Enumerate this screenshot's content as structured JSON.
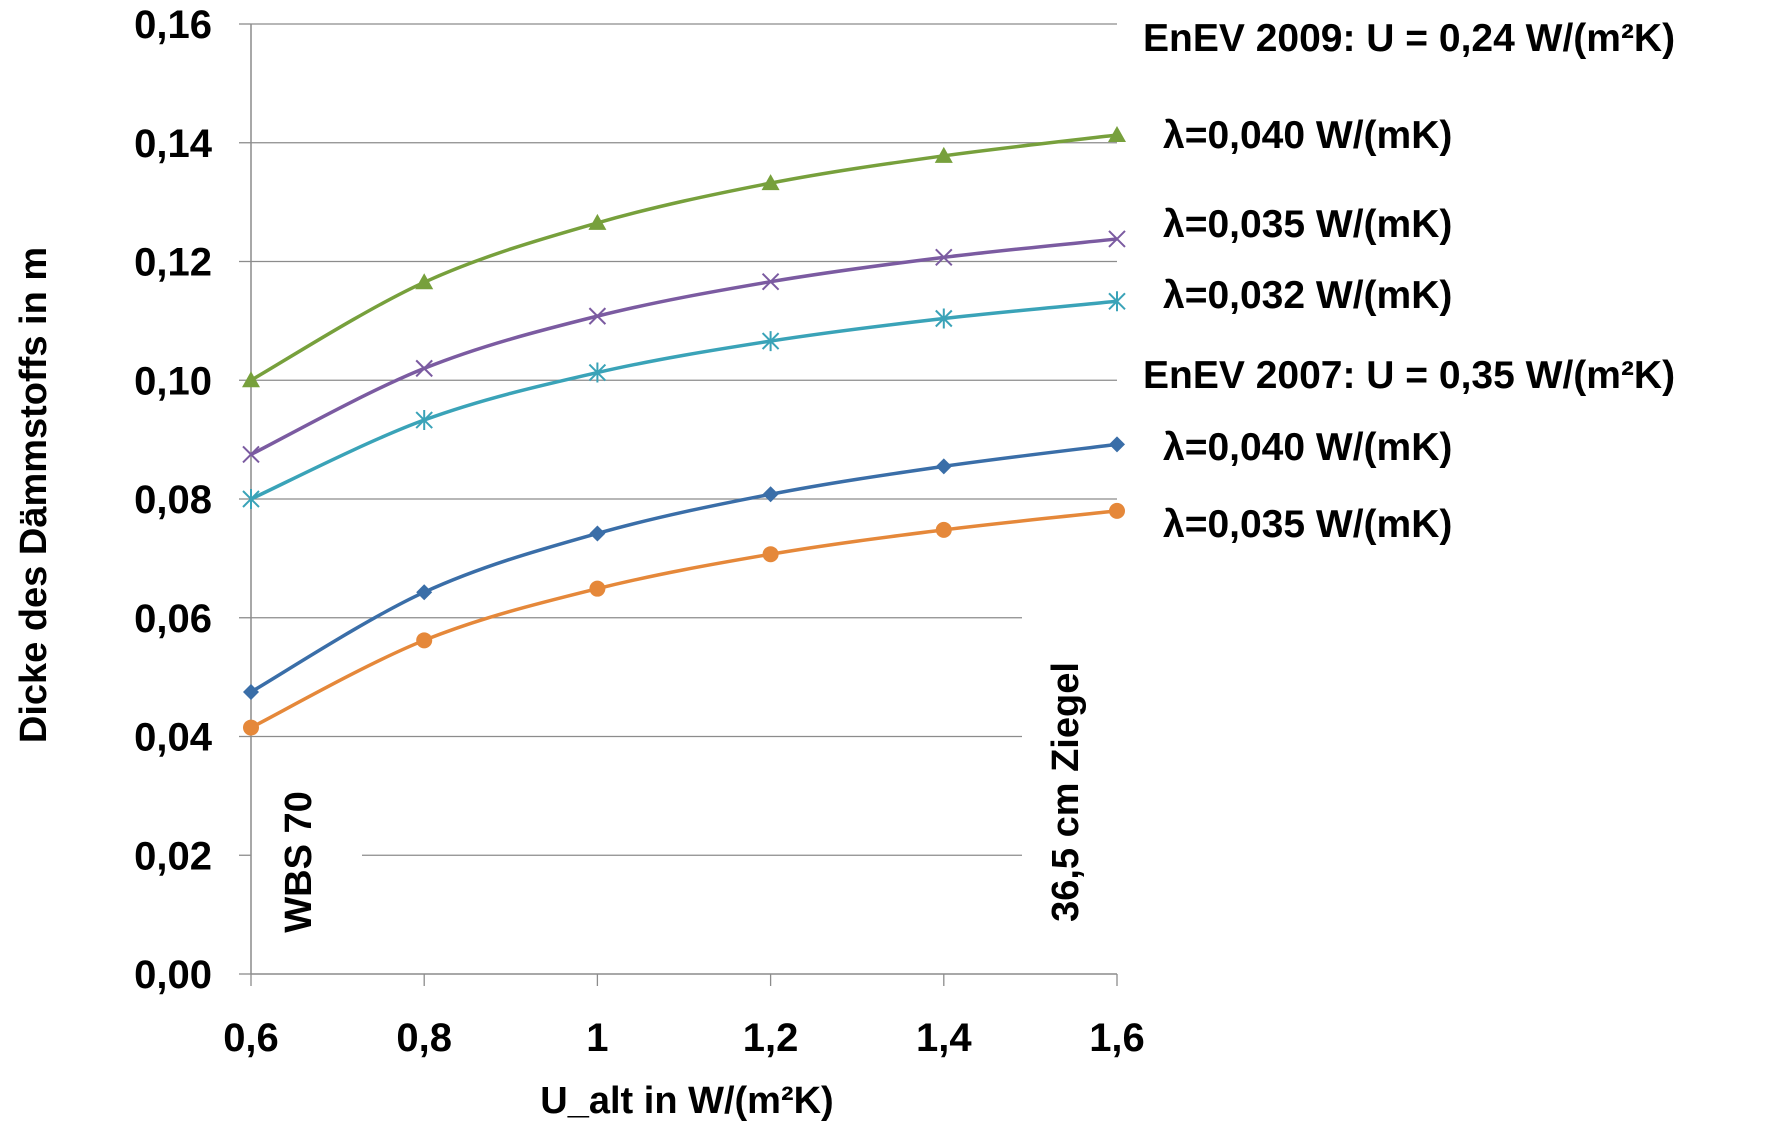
{
  "chart_data": {
    "type": "line",
    "x": [
      0.6,
      0.8,
      1.0,
      1.2,
      1.4,
      1.6
    ],
    "xtick_labels": [
      "0,6",
      "0,8",
      "1",
      "1,2",
      "1,4",
      "1,6"
    ],
    "ytick_labels": [
      "0,00",
      "0,02",
      "0,04",
      "0,06",
      "0,08",
      "0,10",
      "0,12",
      "0,14",
      "0,16"
    ],
    "ylim": [
      0,
      0.16
    ],
    "xlim": [
      0.6,
      1.6
    ],
    "xlabel": "U_alt in W/(m²K)",
    "ylabel": "Dicke des Dämmstoffs in m",
    "grid": "horizontal",
    "series": [
      {
        "name": "λ=0,040 W/(mK)",
        "group": "EnEV 2009: U = 0,24 W/(m²K)",
        "color": "#77a03c",
        "marker": "triangle",
        "values": [
          0.1,
          0.1165,
          0.1265,
          0.1332,
          0.1378,
          0.1413
        ]
      },
      {
        "name": "λ=0,035 W/(mK)",
        "group": "EnEV 2009: U = 0,24 W/(m²K)",
        "color": "#7b5ba1",
        "marker": "x",
        "values": [
          0.0875,
          0.102,
          0.1108,
          0.1166,
          0.1207,
          0.1238
        ]
      },
      {
        "name": "λ=0,032 W/(mK)",
        "group": "EnEV 2009: U = 0,24 W/(m²K)",
        "color": "#3aa3b8",
        "marker": "star",
        "values": [
          0.08,
          0.0933,
          0.1013,
          0.1066,
          0.1104,
          0.1133
        ]
      },
      {
        "name": "λ=0,040 W/(mK)",
        "group": "EnEV 2007: U = 0,35 W/(m²K)",
        "color": "#3a6ea8",
        "marker": "diamond",
        "values": [
          0.0475,
          0.0643,
          0.0742,
          0.0808,
          0.0855,
          0.0892
        ]
      },
      {
        "name": "λ=0,035 W/(mK)",
        "group": "EnEV 2007: U = 0,35 W/(m²K)",
        "color": "#e5883a",
        "marker": "circle",
        "values": [
          0.0415,
          0.0562,
          0.0649,
          0.0707,
          0.0748,
          0.078
        ]
      }
    ],
    "annotations": [
      "WBS 70",
      "36,5 cm Ziegel"
    ],
    "legend_groups": [
      "EnEV 2009: U = 0,24 W/(m²K)",
      "EnEV 2007: U = 0,35 W/(m²K)"
    ]
  }
}
